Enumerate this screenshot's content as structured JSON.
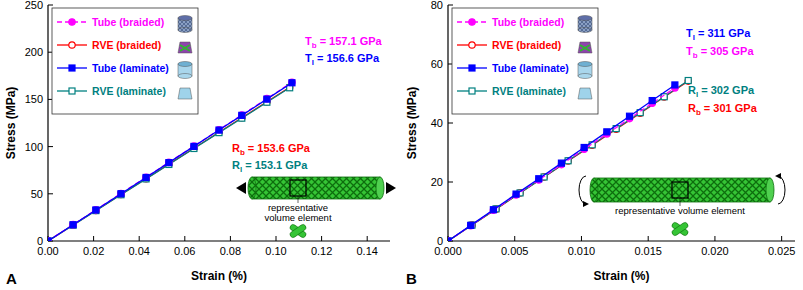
{
  "chart_data": [
    {
      "type": "line",
      "panel": "A",
      "x_label": "Strain (%)",
      "y_label": "Stress (MPa)",
      "xlim": [
        0,
        0.15
      ],
      "xticks": [
        {
          "value": 0,
          "label": "0.00"
        },
        {
          "value": 0.02,
          "label": "0.02"
        },
        {
          "value": 0.04,
          "label": "0.04"
        },
        {
          "value": 0.06,
          "label": "0.06"
        },
        {
          "value": 0.08,
          "label": "0.08"
        },
        {
          "value": 0.1,
          "label": "0.10"
        },
        {
          "value": 0.12,
          "label": "0.12"
        },
        {
          "value": 0.14,
          "label": "0.14"
        }
      ],
      "ylim": [
        0,
        250
      ],
      "yticks": [
        0,
        50,
        100,
        150,
        200,
        250
      ],
      "grid": false,
      "legend": "upper left",
      "series": [
        {
          "name": "Tube (braided)",
          "color": "#ff00ff",
          "marker": "circle",
          "line_style": "dashed",
          "x": [
            0,
            0.011,
            0.021,
            0.032,
            0.043,
            0.053,
            0.064,
            0.075,
            0.085,
            0.096,
            0.107
          ],
          "values": [
            0,
            17.3,
            33.0,
            50.3,
            67.6,
            83.3,
            100.5,
            117.8,
            133.5,
            150.8,
            168.1
          ]
        },
        {
          "name": "RVE (braided)",
          "color": "#ff0000",
          "marker": "circle-open",
          "line_style": "solid",
          "x": [
            0,
            0.011,
            0.021,
            0.032,
            0.043,
            0.053,
            0.064,
            0.075,
            0.085,
            0.096,
            0.106
          ],
          "values": [
            0,
            16.9,
            32.3,
            49.2,
            66.0,
            81.4,
            98.3,
            115.2,
            130.6,
            147.5,
            162.8
          ]
        },
        {
          "name": "Tube (laminate)",
          "color": "#0000ff",
          "marker": "square",
          "line_style": "solid",
          "x": [
            0,
            0.011,
            0.021,
            0.032,
            0.043,
            0.053,
            0.064,
            0.075,
            0.085,
            0.096,
            0.107
          ],
          "values": [
            0,
            17.2,
            32.9,
            50.1,
            67.3,
            83.0,
            100.2,
            117.5,
            133.1,
            150.3,
            167.6
          ]
        },
        {
          "name": "RVE (laminate)",
          "color": "#008080",
          "marker": "square-open",
          "line_style": "solid",
          "x": [
            0,
            0.011,
            0.021,
            0.032,
            0.043,
            0.053,
            0.064,
            0.075,
            0.085,
            0.096,
            0.106
          ],
          "values": [
            0,
            16.8,
            32.2,
            49.0,
            65.8,
            81.1,
            98.0,
            114.8,
            130.1,
            147.0,
            162.3
          ]
        }
      ],
      "annotations": [
        {
          "label": "T",
          "subscript": "b",
          "text": "= 157.1 GPa",
          "color": "#ff00ff"
        },
        {
          "label": "T",
          "subscript": "l",
          "text": "= 156.6 GPa",
          "color": "#0000ff"
        },
        {
          "label": "R",
          "subscript": "b",
          "text": "= 153.6 GPa",
          "color": "#ff0000"
        },
        {
          "label": "R",
          "subscript": "l",
          "text": "= 153.1 GPa",
          "color": "#008080"
        }
      ],
      "note": [
        "representative",
        "volume element"
      ]
    },
    {
      "type": "line",
      "panel": "B",
      "x_label": "Strain (%)",
      "y_label": "Stress (MPa)",
      "xlim": [
        0,
        0.026
      ],
      "xticks": [
        {
          "value": 0,
          "label": "0.000"
        },
        {
          "value": 0.005,
          "label": "0.005"
        },
        {
          "value": 0.01,
          "label": "0.010"
        },
        {
          "value": 0.015,
          "label": "0.015"
        },
        {
          "value": 0.02,
          "label": "0.020"
        },
        {
          "value": 0.025,
          "label": "0.025"
        }
      ],
      "ylim": [
        0,
        80
      ],
      "yticks": [
        0,
        20,
        40,
        60,
        80
      ],
      "grid": false,
      "legend": "upper left",
      "series": [
        {
          "name": "Tube (braided)",
          "color": "#ff00ff",
          "marker": "circle",
          "line_style": "dashed",
          "x": [
            0,
            0.0017,
            0.0034,
            0.0051,
            0.0068,
            0.0085,
            0.0102,
            0.0119,
            0.0136,
            0.0153,
            0.017
          ],
          "values": [
            0,
            5.2,
            10.4,
            15.6,
            20.7,
            25.9,
            31.1,
            36.3,
            41.5,
            46.7,
            51.9
          ]
        },
        {
          "name": "RVE (braided)",
          "color": "#ff0000",
          "marker": "circle-open",
          "line_style": "solid",
          "x": [
            0,
            0.0018,
            0.0036,
            0.0054,
            0.0072,
            0.009,
            0.0108,
            0.0126,
            0.0144,
            0.0162,
            0.018
          ],
          "values": [
            0,
            5.4,
            10.8,
            16.3,
            21.7,
            27.1,
            32.5,
            37.9,
            43.3,
            48.8,
            54.2
          ]
        },
        {
          "name": "Tube (laminate)",
          "color": "#0000ff",
          "marker": "square",
          "line_style": "solid",
          "x": [
            0,
            0.0017,
            0.0034,
            0.0051,
            0.0068,
            0.0085,
            0.0102,
            0.0119,
            0.0136,
            0.0153,
            0.017
          ],
          "values": [
            0,
            5.3,
            10.6,
            15.9,
            21.1,
            26.4,
            31.7,
            37.0,
            42.3,
            47.6,
            52.9
          ]
        },
        {
          "name": "RVE (laminate)",
          "color": "#008080",
          "marker": "square-open",
          "line_style": "solid",
          "x": [
            0,
            0.0018,
            0.0036,
            0.0054,
            0.0072,
            0.009,
            0.0108,
            0.0126,
            0.0144,
            0.0162,
            0.018
          ],
          "values": [
            0,
            5.4,
            10.9,
            16.3,
            21.7,
            27.2,
            32.6,
            38.1,
            43.5,
            48.9,
            54.4
          ]
        }
      ],
      "annotations": [
        {
          "label": "T",
          "subscript": "l",
          "text": "= 311 GPa",
          "color": "#0000ff"
        },
        {
          "label": "T",
          "subscript": "b",
          "text": "= 305 GPa",
          "color": "#ff00ff"
        },
        {
          "label": "R",
          "subscript": "l",
          "text": "= 302 GPa",
          "color": "#008080"
        },
        {
          "label": "R",
          "subscript": "b",
          "text": "= 301 GPa",
          "color": "#ff0000"
        }
      ],
      "note": [
        "representative volume element"
      ]
    }
  ]
}
